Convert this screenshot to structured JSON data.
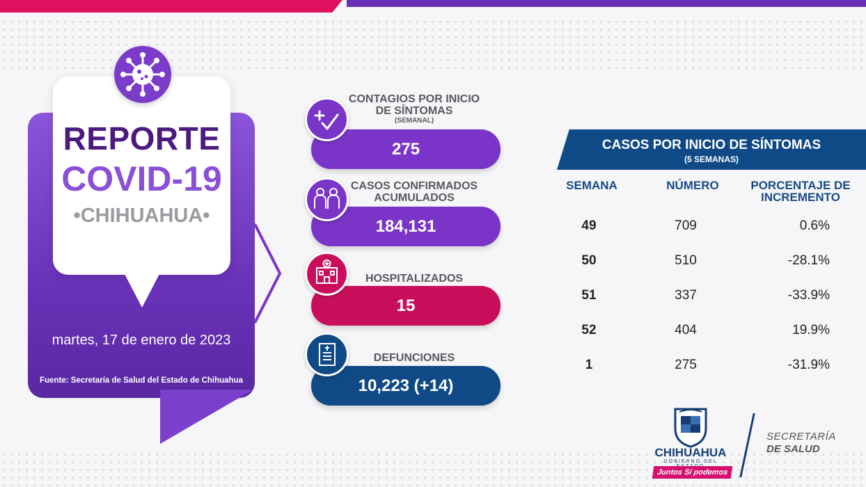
{
  "report": {
    "title_line1": "REPORTE",
    "title_line2": "COVID-19",
    "state": "•CHIHUAHUA•",
    "date": "martes, 17 de enero de 2023",
    "source": "Fuente: Secretaría de Salud del Estado de Chihuahua"
  },
  "stats": [
    {
      "label": "CONTAGIOS POR INICIO DE SÍNTOMAS",
      "sublabel": "(SEMANAL)",
      "value": "275",
      "color": "#7a35c8",
      "icon": "plus-check-icon"
    },
    {
      "label": "CASOS CONFIRMADOS ACUMULADOS",
      "value": "184,131",
      "color": "#7a35c8",
      "icon": "people-icon"
    },
    {
      "label": "HOSPITALIZADOS",
      "value": "15",
      "color": "#c90f5c",
      "icon": "hospital-icon"
    },
    {
      "label": "DEFUNCIONES",
      "value": "10,223 (+14)",
      "color": "#0f4a86",
      "icon": "certificate-icon"
    }
  ],
  "table": {
    "title": "CASOS POR INICIO DE SÍNTOMAS",
    "subtitle": "(5 SEMANAS)",
    "headers": [
      "SEMANA",
      "NÚMERO",
      "PORCENTAJE DE INCREMENTO"
    ],
    "rows": [
      {
        "week": "49",
        "number": "709",
        "pct": "0.6%"
      },
      {
        "week": "50",
        "number": "510",
        "pct": "-28.1%"
      },
      {
        "week": "51",
        "number": "337",
        "pct": "-33.9%"
      },
      {
        "week": "52",
        "number": "404",
        "pct": "19.9%"
      },
      {
        "week": "1",
        "number": "275",
        "pct": "-31.9%"
      }
    ]
  },
  "logos": {
    "brand": "CHIHUAHUA",
    "government": "GOBIERNO DEL ESTADO",
    "slogan": "Juntos Sí podemos",
    "secretaria": "SECRETARÍA",
    "department": "DE SALUD"
  },
  "colors": {
    "purple": "#7a35c8",
    "magenta": "#c90f5c",
    "navy": "#0f4a86",
    "dark_purple": "#4a1a7f"
  }
}
